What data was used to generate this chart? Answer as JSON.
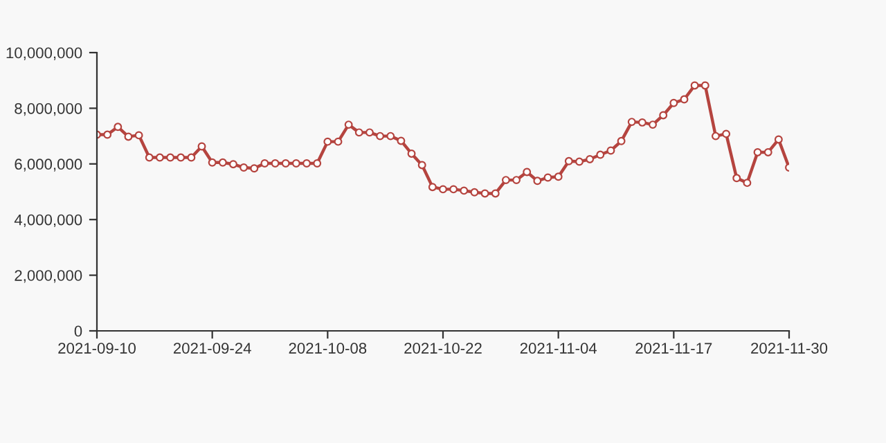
{
  "chart_data": {
    "type": "line",
    "categories": [
      "2021-09-10",
      null,
      null,
      null,
      null,
      null,
      null,
      null,
      null,
      null,
      null,
      "2021-09-24",
      null,
      null,
      null,
      null,
      null,
      null,
      null,
      null,
      null,
      null,
      "2021-10-08",
      null,
      null,
      null,
      null,
      null,
      null,
      null,
      null,
      null,
      null,
      "2021-10-22",
      null,
      null,
      null,
      null,
      null,
      null,
      null,
      null,
      null,
      null,
      "2021-11-04",
      null,
      null,
      null,
      null,
      null,
      null,
      null,
      null,
      null,
      null,
      "2021-11-17",
      null,
      null,
      null,
      null,
      null,
      null,
      null,
      null,
      null,
      null,
      "2021-11-30"
    ],
    "series": [
      {
        "color": "#b5443f",
        "values": [
          7050000,
          7050000,
          7330000,
          6980000,
          7030000,
          6230000,
          6230000,
          6230000,
          6230000,
          6230000,
          6630000,
          6050000,
          6050000,
          5990000,
          5870000,
          5840000,
          6020000,
          6020000,
          6020000,
          6020000,
          6020000,
          6020000,
          6800000,
          6800000,
          7410000,
          7130000,
          7130000,
          7000000,
          7000000,
          6830000,
          6370000,
          5960000,
          5170000,
          5090000,
          5090000,
          5040000,
          4980000,
          4940000,
          4940000,
          5420000,
          5420000,
          5710000,
          5390000,
          5510000,
          5540000,
          6100000,
          6080000,
          6170000,
          6330000,
          6480000,
          6820000,
          7510000,
          7490000,
          7410000,
          7750000,
          8190000,
          8320000,
          8820000,
          8820000,
          7000000,
          7080000,
          5490000,
          5320000,
          6420000,
          6420000,
          6880000,
          5870000
        ]
      }
    ],
    "ylim": [
      0,
      10000000
    ],
    "yticks": [
      {
        "value": 0,
        "label": "0"
      },
      {
        "value": 2000000,
        "label": "2,000,000"
      },
      {
        "value": 4000000,
        "label": "4,000,000"
      },
      {
        "value": 6000000,
        "label": "6,000,000"
      },
      {
        "value": 8000000,
        "label": "8,000,000"
      },
      {
        "value": 10000000,
        "label": "10,000,000"
      }
    ],
    "marker": "circle",
    "grid": false
  }
}
